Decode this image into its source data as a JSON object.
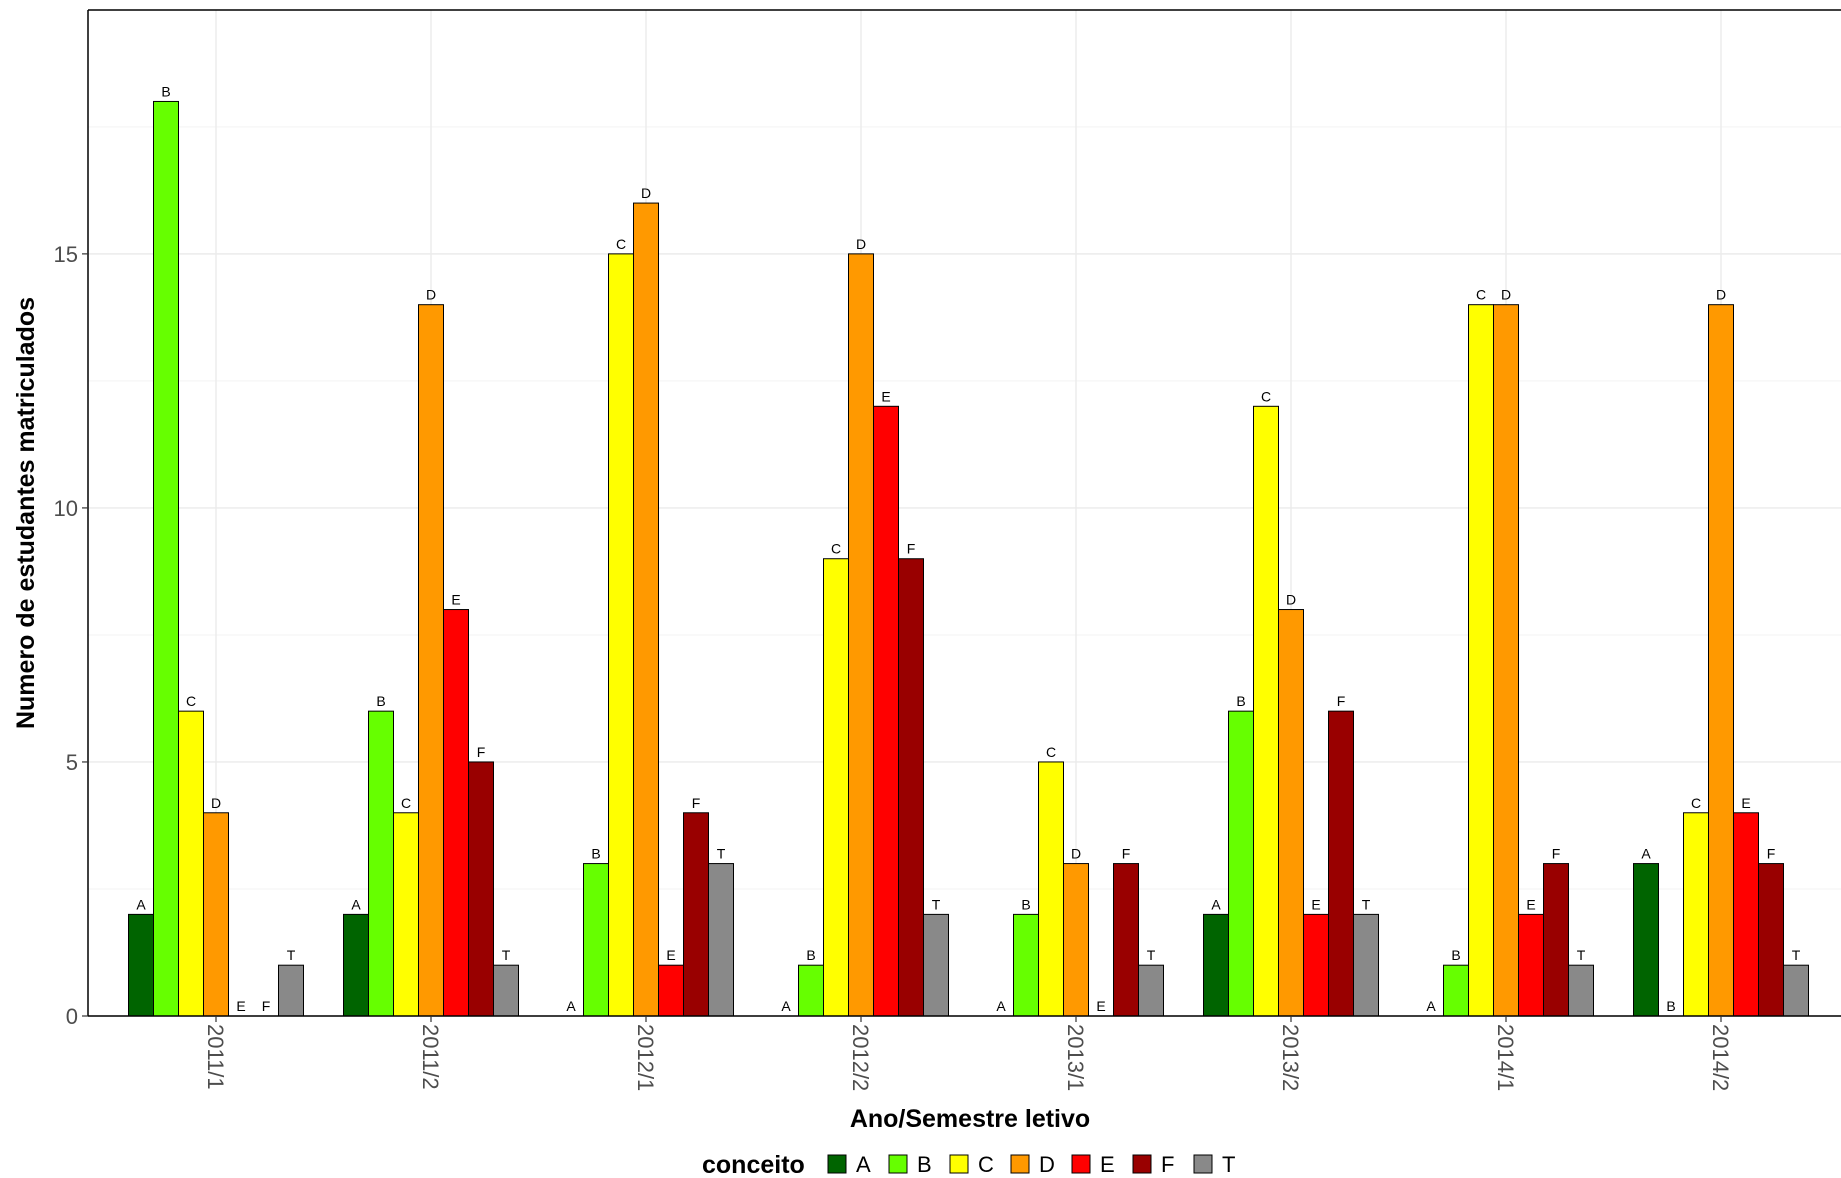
{
  "chart_data": {
    "type": "bar",
    "xlabel": "Ano/Semestre letivo",
    "ylabel": "Numero de estudantes matriculados",
    "ylim": [
      0,
      19.8
    ],
    "yticks": [
      0,
      5,
      10,
      15
    ],
    "grid": true,
    "legend_title": "conceito",
    "legend_position": "bottom",
    "categories": [
      "2011/1",
      "2011/2",
      "2012/1",
      "2012/2",
      "2013/1",
      "2013/2",
      "2014/1",
      "2014/2"
    ],
    "series": [
      {
        "name": "A",
        "color": "#006400",
        "values": [
          2,
          2,
          0,
          0,
          0,
          2,
          0,
          3
        ]
      },
      {
        "name": "B",
        "color": "#66FF00",
        "values": [
          18,
          6,
          3,
          1,
          2,
          6,
          1,
          0
        ]
      },
      {
        "name": "C",
        "color": "#FFFF00",
        "values": [
          6,
          4,
          15,
          9,
          5,
          12,
          14,
          4
        ]
      },
      {
        "name": "D",
        "color": "#FF9900",
        "values": [
          4,
          14,
          16,
          15,
          3,
          8,
          14,
          14
        ]
      },
      {
        "name": "E",
        "color": "#FF0000",
        "values": [
          0,
          8,
          1,
          12,
          0,
          2,
          2,
          4
        ]
      },
      {
        "name": "F",
        "color": "#990000",
        "values": [
          0,
          5,
          4,
          9,
          3,
          6,
          3,
          3
        ]
      },
      {
        "name": "T",
        "color": "#898989",
        "values": [
          1,
          1,
          3,
          2,
          1,
          2,
          1,
          1
        ]
      }
    ]
  }
}
